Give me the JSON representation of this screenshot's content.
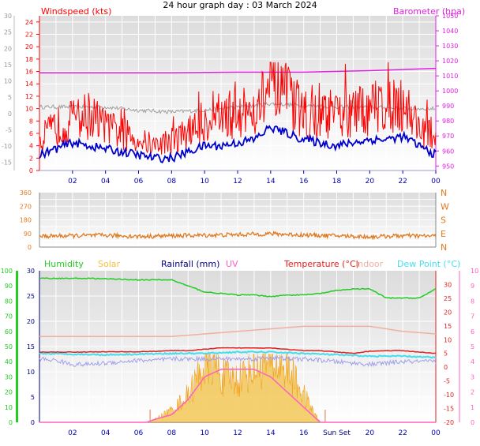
{
  "title": "24 hour graph day : 03 March 2024",
  "colors": {
    "wind_gust": "#ff0000",
    "wind_avg": "#0000cc",
    "barometer": "#e020e0",
    "temp_scale": "#a0a0a0",
    "wind_dir": "#e07a20",
    "humidity": "#22cc22",
    "solar": "#f2c040",
    "rainfall": "#000080",
    "uv": "#ff60c0",
    "temperature": "#dd2222",
    "indoor": "#f0b0a0",
    "dew_point": "#44ddee",
    "apparent": "#a0a0ee",
    "grid": "#ffffff",
    "panel_top": "#e4e4e4",
    "panel_bottom": "#ffffff"
  },
  "chart_data": [
    {
      "type": "line",
      "panel": "wind_pressure",
      "title": "24 hour graph day : 03 March 2024",
      "legend": [
        "Windspeed (kts)",
        "Barometer (hpa)"
      ],
      "x_ticks": [
        "02",
        "04",
        "06",
        "08",
        "10",
        "12",
        "14",
        "16",
        "18",
        "20",
        "22",
        "00"
      ],
      "y_left_ticks": [
        "0",
        "2",
        "4",
        "6",
        "8",
        "10",
        "12",
        "14",
        "16",
        "18",
        "20",
        "22",
        "24"
      ],
      "y_left_ylim": [
        0,
        25
      ],
      "y_right_ticks": [
        "950",
        "960",
        "970",
        "980",
        "990",
        "1000",
        "1010",
        "1020",
        "1030",
        "1040",
        "1050"
      ],
      "y_right_ylim": [
        947,
        1050
      ],
      "y_outer_ticks": [
        "-15",
        "-10",
        "-5",
        "0",
        "5",
        "10",
        "15",
        "20",
        "25",
        "30"
      ],
      "y_outer_ylim": [
        -17.5,
        30
      ],
      "xlim": [
        0,
        24
      ],
      "series": [
        {
          "name": "Windspeed (kts)",
          "x": [
            0,
            1,
            2,
            3,
            4,
            5,
            6,
            7,
            8,
            9,
            10,
            11,
            12,
            13,
            14,
            15,
            16,
            17,
            18,
            19,
            20,
            21,
            22,
            23,
            24
          ],
          "values": [
            5,
            7,
            8,
            9,
            7,
            6,
            5,
            4,
            5,
            6,
            8,
            9,
            9,
            10,
            13,
            12,
            9,
            9,
            9,
            9,
            10,
            11,
            11,
            7,
            5
          ]
        },
        {
          "name": "average",
          "x": [
            0,
            1,
            2,
            3,
            4,
            5,
            6,
            7,
            8,
            9,
            10,
            11,
            12,
            13,
            14,
            15,
            16,
            17,
            18,
            19,
            20,
            21,
            22,
            23,
            24
          ],
          "values": [
            2.5,
            3.5,
            4.5,
            4,
            3.5,
            3,
            2.5,
            2,
            2,
            3,
            4,
            4,
            4.5,
            5,
            7,
            6,
            5,
            4.5,
            4,
            4.5,
            5,
            5,
            5.5,
            4,
            2.5
          ]
        },
        {
          "name": "Barometer (hpa)",
          "x": [
            0,
            4,
            8,
            12,
            16,
            20,
            24
          ],
          "values": [
            1012,
            1012,
            1012,
            1012.5,
            1012.5,
            1013.5,
            1015
          ]
        },
        {
          "name": "temperature",
          "x": [
            0,
            2,
            4,
            6,
            8,
            10,
            12,
            14,
            16,
            18,
            20,
            22,
            24
          ],
          "values": [
            2,
            2,
            2,
            1,
            0.5,
            1,
            2,
            3,
            2.5,
            2,
            2,
            1.5,
            1.5
          ]
        }
      ]
    },
    {
      "type": "line",
      "panel": "wind_direction",
      "x_ticks": [],
      "y_left_ticks": [
        "0",
        "90",
        "180",
        "270",
        "360"
      ],
      "y_right_ticks": [
        "N",
        "E",
        "S",
        "W",
        "N"
      ],
      "ylim": [
        0,
        360
      ],
      "xlim": [
        0,
        24
      ],
      "series": [
        {
          "name": "direction",
          "x": [
            0,
            2,
            4,
            6,
            8,
            10,
            12,
            14,
            16,
            18,
            20,
            22,
            24
          ],
          "values": [
            72,
            75,
            78,
            70,
            75,
            78,
            82,
            88,
            80,
            75,
            68,
            75,
            72
          ]
        }
      ]
    },
    {
      "type": "line",
      "panel": "weather",
      "legend": [
        "Humidity",
        "Solar",
        "Rainfall (mm)",
        "UV",
        "Temperature (°C)",
        "Indoor",
        "Dew Point (°C)"
      ],
      "x_ticks": [
        "02",
        "04",
        "06",
        "08",
        "10",
        "12",
        "14",
        "16",
        "Sun Set",
        "20",
        "22",
        "00"
      ],
      "y_humidity_ticks": [
        "0",
        "10",
        "20",
        "30",
        "40",
        "50",
        "60",
        "70",
        "80",
        "90",
        "100"
      ],
      "y_humidity_ylim": [
        0,
        100
      ],
      "y_rain_ticks": [
        "0",
        "5",
        "10",
        "15",
        "20",
        "25",
        "30"
      ],
      "y_rain_ylim": [
        0,
        30
      ],
      "y_uv_ticks": [
        "0",
        "1",
        "2",
        "3",
        "4",
        "5",
        "6",
        "7",
        "8",
        "9",
        "10"
      ],
      "y_uv_ylim": [
        0,
        10
      ],
      "y_temp_ticks": [
        "-20",
        "-15",
        "-10",
        "-5",
        "0",
        "5",
        "10",
        "15",
        "20",
        "25",
        "30"
      ],
      "y_temp_ylim": [
        -20,
        35
      ],
      "xlim": [
        0,
        24
      ],
      "series": [
        {
          "name": "Humidity",
          "x": [
            0,
            3,
            6,
            8,
            9,
            10,
            11,
            12,
            13,
            14,
            15,
            16,
            17,
            18,
            19,
            20,
            21,
            22,
            23,
            24
          ],
          "values": [
            95,
            95,
            94,
            94,
            90,
            86,
            85,
            84,
            84,
            83,
            84,
            84,
            85,
            87,
            88,
            88,
            82,
            82,
            82,
            88
          ]
        },
        {
          "name": "Solar",
          "x": [
            0,
            6.5,
            7,
            8,
            9,
            10,
            10.5,
            11,
            12,
            13,
            14,
            15,
            16,
            16.7,
            17,
            24
          ],
          "values": [
            0,
            0,
            2,
            8,
            18,
            38,
            42,
            30,
            28,
            38,
            40,
            36,
            18,
            5,
            0,
            0
          ]
        },
        {
          "name": "UV",
          "x": [
            0,
            6.5,
            7,
            8,
            9,
            10,
            11,
            12,
            13,
            14,
            15,
            16,
            16.7,
            17,
            24
          ],
          "values": [
            0,
            0,
            0.2,
            0.5,
            1.5,
            3,
            3.5,
            3.5,
            3.5,
            3,
            2,
            1,
            0.3,
            0,
            0
          ]
        },
        {
          "name": "Temperature (°C)",
          "x": [
            0,
            2,
            4,
            6,
            8,
            9,
            10,
            11,
            12,
            13,
            14,
            15,
            16,
            17,
            18,
            19,
            20,
            21,
            22,
            23,
            24
          ],
          "values": [
            5.5,
            5.5,
            5.6,
            5.6,
            6,
            6,
            6.5,
            7,
            7,
            7,
            7,
            6.5,
            6,
            6,
            5.5,
            5,
            5.8,
            6,
            6,
            5.5,
            5
          ]
        },
        {
          "name": "Indoor",
          "x": [
            0,
            4,
            8,
            10,
            12,
            14,
            16,
            18,
            20,
            22,
            24
          ],
          "values": [
            17,
            17,
            17,
            17.5,
            18,
            18.5,
            19,
            19,
            19,
            18,
            17.5
          ]
        },
        {
          "name": "Dew Point (°C)",
          "x": [
            0,
            4,
            8,
            10,
            12,
            14,
            16,
            18,
            20,
            22,
            24
          ],
          "values": [
            5,
            4.5,
            5,
            5,
            5.5,
            5.5,
            5,
            4.5,
            4,
            4,
            3.5
          ]
        },
        {
          "name": "apparent",
          "x": [
            0,
            1,
            2,
            3,
            4,
            5,
            6,
            7,
            8,
            9,
            10,
            11,
            12,
            13,
            14,
            15,
            16,
            17,
            18,
            19,
            20,
            21,
            22,
            23,
            24
          ],
          "values": [
            3,
            2.5,
            1,
            1,
            1.5,
            2,
            2.5,
            2.5,
            3,
            3,
            3,
            3,
            3,
            3,
            3.5,
            3,
            3,
            2.5,
            2,
            1.5,
            1,
            1.5,
            2,
            2,
            2
          ]
        }
      ]
    }
  ]
}
